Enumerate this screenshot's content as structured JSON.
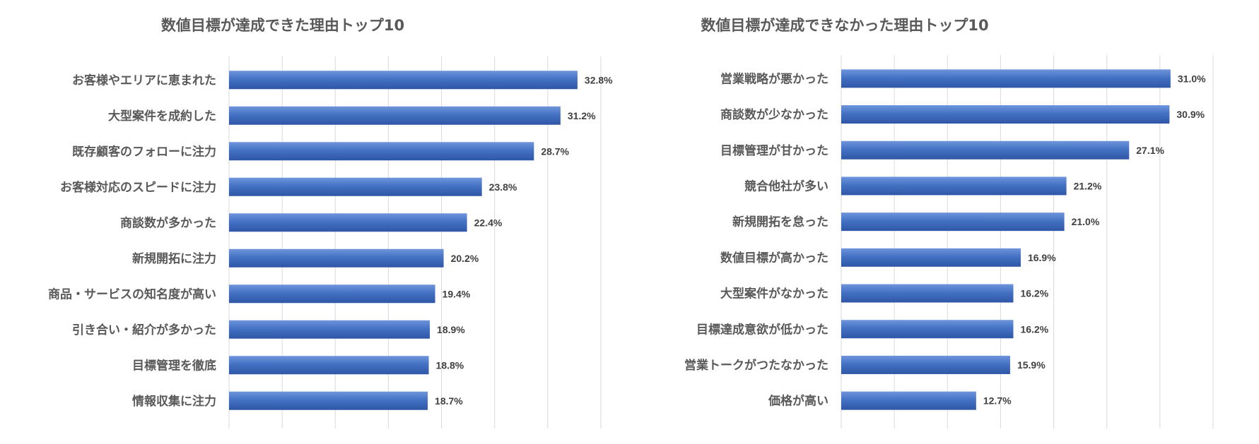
{
  "chart_data": [
    {
      "type": "bar",
      "orientation": "horizontal",
      "title": "数値目標が達成できた理由トップ10",
      "categories": [
        "お客様やエリアに恵まれた",
        "大型案件を成約した",
        "既存顧客のフォローに注力",
        "お客様対応のスピードに注力",
        "商談数が多かった",
        "新規開拓に注力",
        "商品・サービスの知名度が高い",
        "引き合い・紹介が多かった",
        "目標管理を徹底",
        "情報収集に注力"
      ],
      "values": [
        32.8,
        31.2,
        28.7,
        23.8,
        22.4,
        20.2,
        19.4,
        18.9,
        18.8,
        18.7
      ],
      "value_labels": [
        "32.8%",
        "31.2%",
        "28.7%",
        "23.8%",
        "22.4%",
        "20.2%",
        "19.4%",
        "18.9%",
        "18.8%",
        "18.7%"
      ],
      "xlim": [
        0,
        35
      ],
      "grid": true,
      "bar_color": "#4472C4"
    },
    {
      "type": "bar",
      "orientation": "horizontal",
      "title": "数値目標が達成できなかった理由トップ10",
      "categories": [
        "営業戦略が悪かった",
        "商談数が少なかった",
        "目標管理が甘かった",
        "競合他社が多い",
        "新規開拓を怠った",
        "数値目標が高かった",
        "大型案件がなかった",
        "目標達成意欲が低かった",
        "営業トークがつたなかった",
        "価格が高い"
      ],
      "values": [
        31.0,
        30.9,
        27.1,
        21.2,
        21.0,
        16.9,
        16.2,
        16.2,
        15.9,
        12.7
      ],
      "value_labels": [
        "31.0%",
        "30.9%",
        "27.1%",
        "21.2%",
        "21.0%",
        "16.9%",
        "16.2%",
        "16.2%",
        "15.9%",
        "12.7%"
      ],
      "xlim": [
        0,
        35
      ],
      "grid": true,
      "bar_color": "#4472C4"
    }
  ]
}
